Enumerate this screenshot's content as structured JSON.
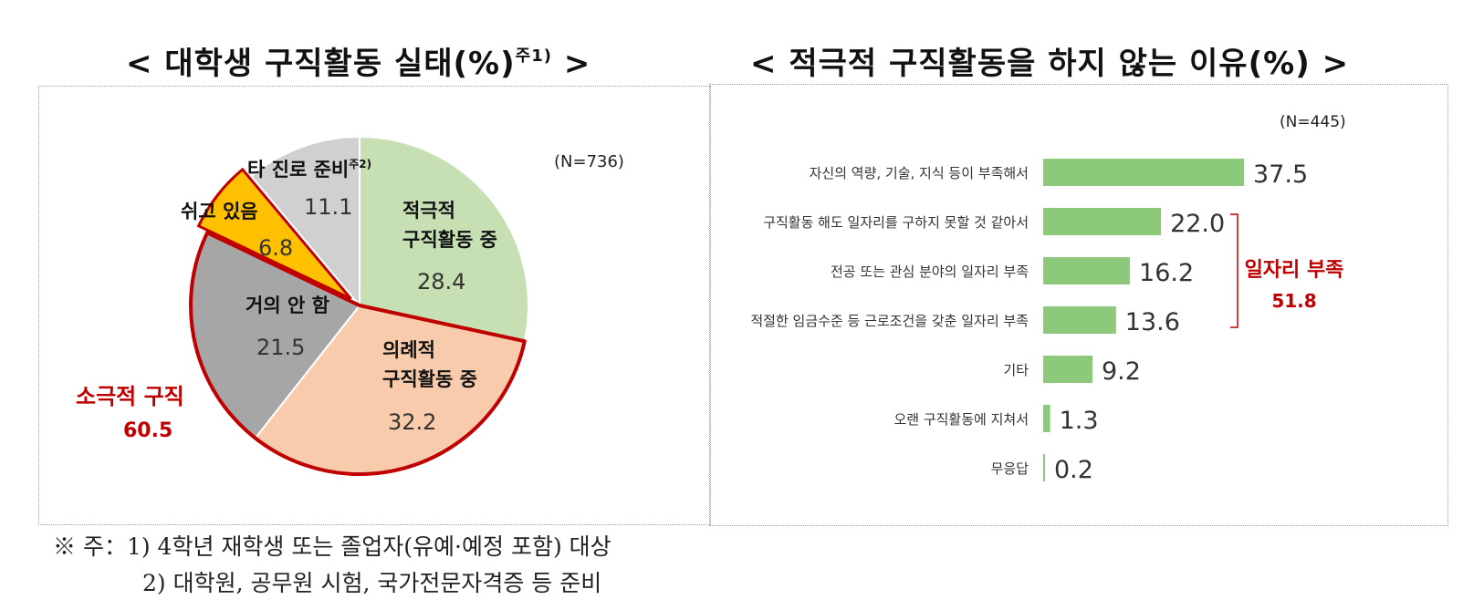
{
  "left_title": {
    "text": "< 대학생 구직활동 실태(%)",
    "sup": "주1)",
    "close": " >"
  },
  "right_title": {
    "text": "< 적극적 구직활동을 하지 않는 이유(%) >"
  },
  "colors": {
    "active": "#c6e0b4",
    "ritual": "#f8cbad",
    "barely": "#a6a6a6",
    "resting": "#ffc000",
    "other": "#d0d0d0",
    "highlight": "#c00000",
    "bar": "#8cc97a"
  },
  "chart_data": [
    {
      "type": "pie",
      "n_label": "(N=736)",
      "slices": [
        {
          "key": "active",
          "label_lines": [
            "적극적",
            "구직활동 중"
          ],
          "value": 28.4
        },
        {
          "key": "ritual",
          "label_lines": [
            "의례적",
            "구직활동 중"
          ],
          "value": 32.2
        },
        {
          "key": "barely",
          "label_lines": [
            "거의 안 함"
          ],
          "value": 21.5
        },
        {
          "key": "resting",
          "label_lines": [
            "쉬고 있음"
          ],
          "value": 6.8
        },
        {
          "key": "other",
          "label_lines": [
            "타 진로 준비"
          ],
          "label_sup": "주2)",
          "value": 11.1
        }
      ],
      "group_annotation": {
        "label": "소극적 구직",
        "value": "60.5"
      }
    },
    {
      "type": "bar",
      "orientation": "horizontal",
      "n_label": "(N=445)",
      "categories": [
        "자신의 역량, 기술, 지식 등이 부족해서",
        "구직활동 해도 일자리를 구하지 못할 것 같아서",
        "전공 또는 관심 분야의 일자리 부족",
        "적절한 임금수준 등 근로조건을 갖춘 일자리 부족",
        "기타",
        "오랜 구직활동에 지쳐서",
        "무응답"
      ],
      "values": [
        37.5,
        22.0,
        16.2,
        13.6,
        9.2,
        1.3,
        0.2
      ],
      "value_labels": [
        "37.5",
        "22.0",
        "16.2",
        "13.6",
        "9.2",
        "1.3",
        "0.2"
      ],
      "bracket_annotation": {
        "label": "일자리 부족",
        "value": "51.8"
      }
    }
  ],
  "footnotes": [
    "※ 주：1) 4학년 재학생 또는 졸업자(유예·예정 포함) 대상",
    "2) 대학원, 공무원 시험, 국가전문자격증 등 준비"
  ]
}
